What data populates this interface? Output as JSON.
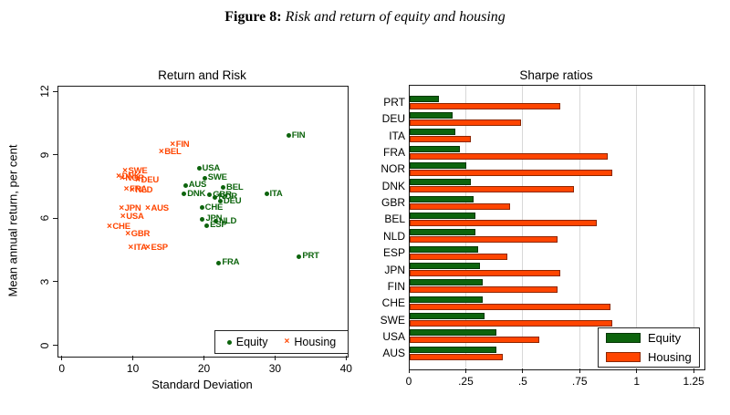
{
  "caption": {
    "prefix": "Figure 8:",
    "text": "Risk and return of equity and housing"
  },
  "colors": {
    "equity": "#0d640d",
    "housing": "#ff4500",
    "grid": "#d8d8d8",
    "frame": "#1a1a1a"
  },
  "chart_data": [
    {
      "type": "scatter",
      "title": "Return and Risk",
      "xlabel": "Standard Deviation",
      "ylabel": "Mean annual return, per cent",
      "xlim": [
        0,
        40
      ],
      "ylim": [
        0,
        12
      ],
      "xticks": [
        0,
        10,
        20,
        30,
        40
      ],
      "yticks": [
        0,
        3,
        6,
        9,
        12
      ],
      "legend": [
        {
          "label": "Equity",
          "marker": "dot"
        },
        {
          "label": "Housing",
          "marker": "x"
        }
      ],
      "legend_position": "bottom-right-inside",
      "grid": false,
      "series": [
        {
          "name": "Housing",
          "marker": "x",
          "points": [
            {
              "label": "FIN",
              "x": 15.6,
              "y": 9.45
            },
            {
              "label": "BEL",
              "x": 14.0,
              "y": 9.1
            },
            {
              "label": "SWE",
              "x": 8.9,
              "y": 8.2
            },
            {
              "label": "DNK",
              "x": 8.0,
              "y": 7.95
            },
            {
              "label": "NOR",
              "x": 8.5,
              "y": 7.85
            },
            {
              "label": "DEU",
              "x": 10.7,
              "y": 7.8
            },
            {
              "label": "FRA",
              "x": 9.1,
              "y": 7.35
            },
            {
              "label": "NLD",
              "x": 9.9,
              "y": 7.3
            },
            {
              "label": "JPN",
              "x": 8.4,
              "y": 6.45
            },
            {
              "label": "AUS",
              "x": 12.1,
              "y": 6.45
            },
            {
              "label": "USA",
              "x": 8.6,
              "y": 6.05
            },
            {
              "label": "CHE",
              "x": 6.7,
              "y": 5.6
            },
            {
              "label": "GBR",
              "x": 9.3,
              "y": 5.25
            },
            {
              "label": "ITA",
              "x": 9.7,
              "y": 4.6
            },
            {
              "label": "ESP",
              "x": 12.1,
              "y": 4.6
            }
          ]
        },
        {
          "name": "Equity",
          "marker": "dot",
          "points": [
            {
              "label": "FIN",
              "x": 31.9,
              "y": 9.9
            },
            {
              "label": "USA",
              "x": 19.3,
              "y": 8.35
            },
            {
              "label": "SWE",
              "x": 20.1,
              "y": 7.9
            },
            {
              "label": "AUS",
              "x": 17.4,
              "y": 7.55
            },
            {
              "label": "BEL",
              "x": 22.7,
              "y": 7.45
            },
            {
              "label": "DNK",
              "x": 17.2,
              "y": 7.15
            },
            {
              "label": "GBR",
              "x": 20.8,
              "y": 7.1
            },
            {
              "label": "NOR",
              "x": 21.6,
              "y": 7.0
            },
            {
              "label": "ITA",
              "x": 28.8,
              "y": 7.15
            },
            {
              "label": "DEU",
              "x": 22.3,
              "y": 6.8
            },
            {
              "label": "CHE",
              "x": 19.7,
              "y": 6.5
            },
            {
              "label": "JPN",
              "x": 19.8,
              "y": 5.95
            },
            {
              "label": "NLD",
              "x": 21.7,
              "y": 5.85
            },
            {
              "label": "ESP",
              "x": 20.4,
              "y": 5.65
            },
            {
              "label": "FRA",
              "x": 22.1,
              "y": 3.9
            },
            {
              "label": "PRT",
              "x": 33.4,
              "y": 4.2
            }
          ]
        }
      ]
    },
    {
      "type": "bar",
      "title": "Sharpe ratios",
      "orientation": "horizontal",
      "categories": [
        "PRT",
        "DEU",
        "ITA",
        "FRA",
        "NOR",
        "DNK",
        "GBR",
        "BEL",
        "NLD",
        "ESP",
        "JPN",
        "FIN",
        "CHE",
        "SWE",
        "USA",
        "AUS"
      ],
      "series": [
        {
          "name": "Equity",
          "values": [
            0.13,
            0.19,
            0.2,
            0.22,
            0.25,
            0.27,
            0.28,
            0.29,
            0.29,
            0.3,
            0.31,
            0.32,
            0.32,
            0.33,
            0.38,
            0.38
          ]
        },
        {
          "name": "Housing",
          "values": [
            0.66,
            0.49,
            0.27,
            0.87,
            0.89,
            0.72,
            0.44,
            0.82,
            0.65,
            0.43,
            0.66,
            0.65,
            0.88,
            0.89,
            0.57,
            0.41
          ]
        }
      ],
      "xlim": [
        0,
        1.3
      ],
      "xticks": {
        "values": [
          0,
          0.25,
          0.5,
          0.75,
          1,
          1.25
        ],
        "labels": [
          "0",
          ".25",
          ".5",
          ".75",
          "1",
          "1.25"
        ]
      },
      "grid": true,
      "legend_position": "bottom-right-inside"
    }
  ]
}
